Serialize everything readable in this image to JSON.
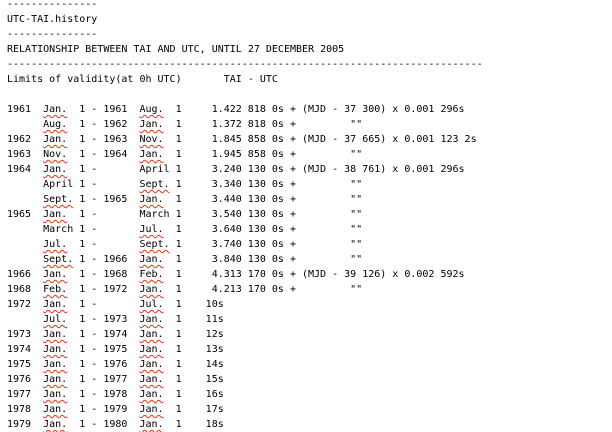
{
  "header": {
    "rule_short": "---------------",
    "title": "UTC-TAI.history",
    "heading": "RELATIONSHIP BETWEEN TAI AND UTC, UNTIL 27 DECEMBER 2005",
    "rule_long": "-------------------------------------------------------------------------------",
    "col_limits": "Limits of validity(at 0h UTC)",
    "col_value": "TAI - UTC"
  },
  "spellcheck_underline_color": "#e2380f",
  "rows": [
    {
      "y1": "1961",
      "m1": "Jan.",
      "d1": "1",
      "sep": "-",
      "y2": "1961",
      "m2": "Aug.",
      "d2": "1",
      "value": "1.422 818 0s + (MJD - 37 300) x 0.001 296s"
    },
    {
      "y1": "",
      "m1": "Aug.",
      "d1": "1",
      "sep": "-",
      "y2": "1962",
      "m2": "Jan.",
      "d2": "1",
      "value": "1.372 818 0s +         \"\""
    },
    {
      "y1": "1962",
      "m1": "Jan.",
      "d1": "1",
      "sep": "-",
      "y2": "1963",
      "m2": "Nov.",
      "d2": "1",
      "value": "1.845 858 0s + (MJD - 37 665) x 0.001 123 2s"
    },
    {
      "y1": "1963",
      "m1": "Nov.",
      "d1": "1",
      "sep": "-",
      "y2": "1964",
      "m2": "Jan.",
      "d2": "1",
      "value": "1.945 858 0s +         \"\""
    },
    {
      "y1": "1964",
      "m1": "Jan.",
      "d1": "1",
      "sep": "-",
      "y2": "",
      "m2": "April",
      "d2": "1",
      "value": "3.240 130 0s + (MJD - 38 761) x 0.001 296s"
    },
    {
      "y1": "",
      "m1": "April",
      "d1": "1",
      "sep": "-",
      "y2": "",
      "m2": "Sept.",
      "d2": "1",
      "value": "3.340 130 0s +         \"\""
    },
    {
      "y1": "",
      "m1": "Sept.",
      "d1": "1",
      "sep": "-",
      "y2": "1965",
      "m2": "Jan.",
      "d2": "1",
      "value": "3.440 130 0s +         \"\""
    },
    {
      "y1": "1965",
      "m1": "Jan.",
      "d1": "1",
      "sep": "-",
      "y2": "",
      "m2": "March",
      "d2": "1",
      "value": "3.540 130 0s +         \"\""
    },
    {
      "y1": "",
      "m1": "March",
      "d1": "1",
      "sep": "-",
      "y2": "",
      "m2": "Jul.",
      "d2": "1",
      "value": "3.640 130 0s +         \"\""
    },
    {
      "y1": "",
      "m1": "Jul.",
      "d1": "1",
      "sep": "-",
      "y2": "",
      "m2": "Sept.",
      "d2": "1",
      "value": "3.740 130 0s +         \"\""
    },
    {
      "y1": "",
      "m1": "Sept.",
      "d1": "1",
      "sep": "-",
      "y2": "1966",
      "m2": "Jan.",
      "d2": "1",
      "value": "3.840 130 0s +         \"\""
    },
    {
      "y1": "1966",
      "m1": "Jan.",
      "d1": "1",
      "sep": "-",
      "y2": "1968",
      "m2": "Feb.",
      "d2": "1",
      "value": "4.313 170 0s + (MJD - 39 126) x 0.002 592s"
    },
    {
      "y1": "1968",
      "m1": "Feb.",
      "d1": "1",
      "sep": "-",
      "y2": "1972",
      "m2": "Jan.",
      "d2": "1",
      "value": "4.213 170 0s +         \"\""
    },
    {
      "y1": "1972",
      "m1": "Jan.",
      "d1": "1",
      "sep": "-",
      "y2": "",
      "m2": "Jul.",
      "d2": "1",
      "value": "10s",
      "leap": true
    },
    {
      "y1": "",
      "m1": "Jul.",
      "d1": "1",
      "sep": "-",
      "y2": "1973",
      "m2": "Jan.",
      "d2": "1",
      "value": "11s",
      "leap": true
    },
    {
      "y1": "1973",
      "m1": "Jan.",
      "d1": "1",
      "sep": "-",
      "y2": "1974",
      "m2": "Jan.",
      "d2": "1",
      "value": "12s",
      "leap": true
    },
    {
      "y1": "1974",
      "m1": "Jan.",
      "d1": "1",
      "sep": "-",
      "y2": "1975",
      "m2": "Jan.",
      "d2": "1",
      "value": "13s",
      "leap": true
    },
    {
      "y1": "1975",
      "m1": "Jan.",
      "d1": "1",
      "sep": "-",
      "y2": "1976",
      "m2": "Jan.",
      "d2": "1",
      "value": "14s",
      "leap": true
    },
    {
      "y1": "1976",
      "m1": "Jan.",
      "d1": "1",
      "sep": "-",
      "y2": "1977",
      "m2": "Jan.",
      "d2": "1",
      "value": "15s",
      "leap": true
    },
    {
      "y1": "1977",
      "m1": "Jan.",
      "d1": "1",
      "sep": "-",
      "y2": "1978",
      "m2": "Jan.",
      "d2": "1",
      "value": "16s",
      "leap": true
    },
    {
      "y1": "1978",
      "m1": "Jan.",
      "d1": "1",
      "sep": "-",
      "y2": "1979",
      "m2": "Jan.",
      "d2": "1",
      "value": "17s",
      "leap": true
    },
    {
      "y1": "1979",
      "m1": "Jan.",
      "d1": "1",
      "sep": "-",
      "y2": "1980",
      "m2": "Jan.",
      "d2": "1",
      "value": "18s",
      "leap": true
    }
  ]
}
